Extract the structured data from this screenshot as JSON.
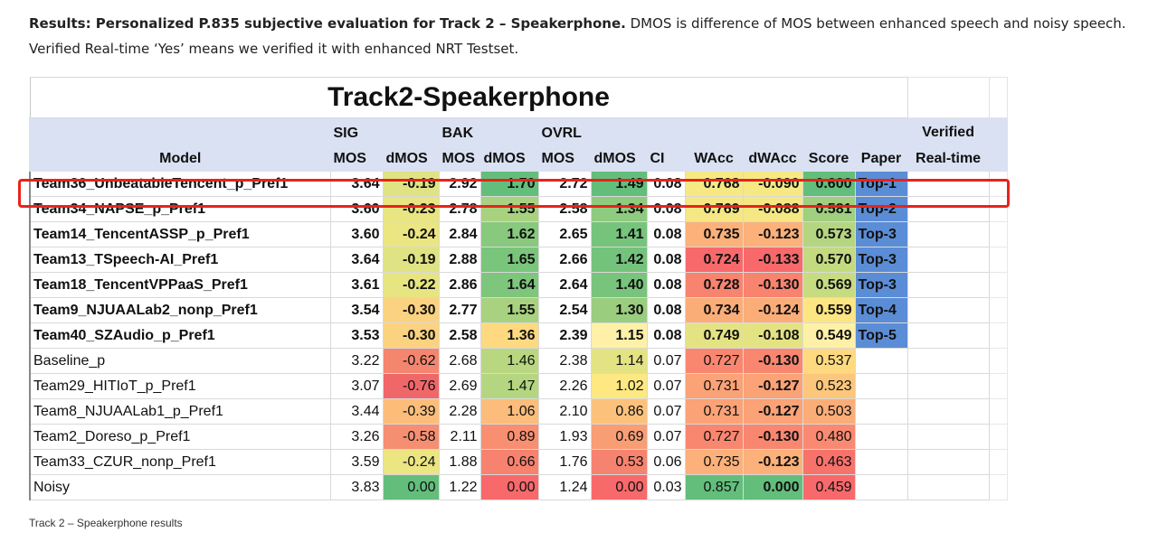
{
  "caption": {
    "bold": "Results: Personalized P.835 subjective evaluation for Track 2 – Speakerphone.",
    "rest": " DMOS is difference of MOS between enhanced speech and noisy speech. Verified Real-time ‘Yes’ means we verified it with enhanced NRT Testset."
  },
  "table": {
    "title": "Track2-Speakerphone",
    "group_headers": {
      "sig": "SIG",
      "bak": "BAK",
      "ovrl": "OVRL",
      "verified": "Verified"
    },
    "columns": [
      "Model",
      "MOS",
      "dMOS",
      "MOS",
      "dMOS",
      "MOS",
      "dMOS",
      "CI",
      "WAcc",
      "dWAcc",
      "Score",
      "Paper",
      "Real-time"
    ],
    "rows": [
      {
        "model": "Team36_UnbeatableTencent_p_Pref1",
        "bold": true,
        "sig": "3.64",
        "sig_d": "-0.19",
        "bak": "2.92",
        "bak_d": "1.70",
        "ovrl": "2.72",
        "ovrl_d": "1.49",
        "ci": "0.08",
        "wacc": "0.768",
        "dwacc": "-0.090",
        "score": "0.600",
        "paper": "Top-1",
        "rt": ""
      },
      {
        "model": "Team34_NAPSE_p_Pref1",
        "bold": true,
        "sig": "3.60",
        "sig_d": "-0.23",
        "bak": "2.78",
        "bak_d": "1.55",
        "ovrl": "2.58",
        "ovrl_d": "1.34",
        "ci": "0.08",
        "wacc": "0.769",
        "dwacc": "-0.088",
        "score": "0.581",
        "paper": "Top-2",
        "rt": ""
      },
      {
        "model": "Team14_TencentASSP_p_Pref1",
        "bold": true,
        "sig": "3.60",
        "sig_d": "-0.24",
        "bak": "2.84",
        "bak_d": "1.62",
        "ovrl": "2.65",
        "ovrl_d": "1.41",
        "ci": "0.08",
        "wacc": "0.735",
        "dwacc": "-0.123",
        "score": "0.573",
        "paper": "Top-3",
        "rt": ""
      },
      {
        "model": "Team13_TSpeech-AI_Pref1",
        "bold": true,
        "sig": "3.64",
        "sig_d": "-0.19",
        "bak": "2.88",
        "bak_d": "1.65",
        "ovrl": "2.66",
        "ovrl_d": "1.42",
        "ci": "0.08",
        "wacc": "0.724",
        "dwacc": "-0.133",
        "score": "0.570",
        "paper": "Top-3",
        "rt": ""
      },
      {
        "model": "Team18_TencentVPPaaS_Pref1",
        "bold": true,
        "sig": "3.61",
        "sig_d": "-0.22",
        "bak": "2.86",
        "bak_d": "1.64",
        "ovrl": "2.64",
        "ovrl_d": "1.40",
        "ci": "0.08",
        "wacc": "0.728",
        "dwacc": "-0.130",
        "score": "0.569",
        "paper": "Top-3",
        "rt": ""
      },
      {
        "model": "Team9_NJUAALab2_nonp_Pref1",
        "bold": true,
        "sig": "3.54",
        "sig_d": "-0.30",
        "bak": "2.77",
        "bak_d": "1.55",
        "ovrl": "2.54",
        "ovrl_d": "1.30",
        "ci": "0.08",
        "wacc": "0.734",
        "dwacc": "-0.124",
        "score": "0.559",
        "paper": "Top-4",
        "rt": ""
      },
      {
        "model": "Team40_SZAudio_p_Pref1",
        "bold": true,
        "sig": "3.53",
        "sig_d": "-0.30",
        "bak": "2.58",
        "bak_d": "1.36",
        "ovrl": "2.39",
        "ovrl_d": "1.15",
        "ci": "0.08",
        "wacc": "0.749",
        "dwacc": "-0.108",
        "score": "0.549",
        "paper": "Top-5",
        "rt": ""
      },
      {
        "model": "Baseline_p",
        "bold": false,
        "sig": "3.22",
        "sig_d": "-0.62",
        "bak": "2.68",
        "bak_d": "1.46",
        "ovrl": "2.38",
        "ovrl_d": "1.14",
        "ci": "0.07",
        "wacc": "0.727",
        "dwacc": "-0.130",
        "score": "0.537",
        "paper": "",
        "rt": ""
      },
      {
        "model": "Team29_HITIoT_p_Pref1",
        "bold": false,
        "sig": "3.07",
        "sig_d": "-0.76",
        "bak": "2.69",
        "bak_d": "1.47",
        "ovrl": "2.26",
        "ovrl_d": "1.02",
        "ci": "0.07",
        "wacc": "0.731",
        "dwacc": "-0.127",
        "score": "0.523",
        "paper": "",
        "rt": ""
      },
      {
        "model": "Team8_NJUAALab1_p_Pref1",
        "bold": false,
        "sig": "3.44",
        "sig_d": "-0.39",
        "bak": "2.28",
        "bak_d": "1.06",
        "ovrl": "2.10",
        "ovrl_d": "0.86",
        "ci": "0.07",
        "wacc": "0.731",
        "dwacc": "-0.127",
        "score": "0.503",
        "paper": "",
        "rt": ""
      },
      {
        "model": "Team2_Doreso_p_Pref1",
        "bold": false,
        "sig": "3.26",
        "sig_d": "-0.58",
        "bak": "2.11",
        "bak_d": "0.89",
        "ovrl": "1.93",
        "ovrl_d": "0.69",
        "ci": "0.07",
        "wacc": "0.727",
        "dwacc": "-0.130",
        "score": "0.480",
        "paper": "",
        "rt": ""
      },
      {
        "model": "Team33_CZUR_nonp_Pref1",
        "bold": false,
        "sig": "3.59",
        "sig_d": "-0.24",
        "bak": "1.88",
        "bak_d": "0.66",
        "ovrl": "1.76",
        "ovrl_d": "0.53",
        "ci": "0.06",
        "wacc": "0.735",
        "dwacc": "-0.123",
        "score": "0.463",
        "paper": "",
        "rt": ""
      },
      {
        "model": "Noisy",
        "bold": false,
        "sig": "3.83",
        "sig_d": "0.00",
        "bak": "1.22",
        "bak_d": "0.00",
        "ovrl": "1.24",
        "ovrl_d": "0.00",
        "ci": "0.03",
        "wacc": "0.857",
        "dwacc": "0.000",
        "score": "0.459",
        "paper": "",
        "rt": ""
      }
    ],
    "heat_colors": {
      "sig_d": [
        "#e0e383",
        "#e8e582",
        "#ebe582",
        "#e0e383",
        "#e6e582",
        "#fbd27f",
        "#fbd27f",
        "#f4866f",
        "#f0676a",
        "#fcbd7b",
        "#f68f72",
        "#ebe582",
        "#63be7b"
      ],
      "bak_d": [
        "#63be7b",
        "#a8d27f",
        "#88c97d",
        "#7ac57c",
        "#7ec67c",
        "#a8d27f",
        "#fed980",
        "#b8d780",
        "#b5d680",
        "#fcbc7b",
        "#f98f71",
        "#f6826f",
        "#f8696b"
      ],
      "ovrl_d": [
        "#63be7b",
        "#8fcb7e",
        "#76c47c",
        "#74c37c",
        "#78c47c",
        "#9acd7e",
        "#fff0a8",
        "#e3e383",
        "#fee882",
        "#fcc27c",
        "#f99d75",
        "#f6836f",
        "#f8696b"
      ],
      "wacc": [
        "#f6e984",
        "#f5e884",
        "#fbb179",
        "#f8696b",
        "#f8836f",
        "#fbad78",
        "#e4e383",
        "#f9876f",
        "#fba276",
        "#fba276",
        "#f9876f",
        "#fbb179",
        "#63be7b"
      ],
      "dwacc": [
        "#f6e984",
        "#f5e884",
        "#fbb179",
        "#f8696b",
        "#f8836f",
        "#fbad78",
        "#e4e383",
        "#f9876f",
        "#fba276",
        "#fba276",
        "#f9876f",
        "#fbb179",
        "#63be7b"
      ],
      "score": [
        "#63be7b",
        "#a0cf7f",
        "#b5d680",
        "#c3da80",
        "#c7dc81",
        "#fde582",
        "#fff0a8",
        "#fed980",
        "#fcc77d",
        "#fbad78",
        "#f98a71",
        "#f8726c",
        "#f8696b"
      ]
    },
    "paper_color": "#5b8dd6",
    "header_color": "#d9e1f2"
  },
  "highlight_color": "#e8231b",
  "footnote": "Track 2 – Speakerphone results"
}
